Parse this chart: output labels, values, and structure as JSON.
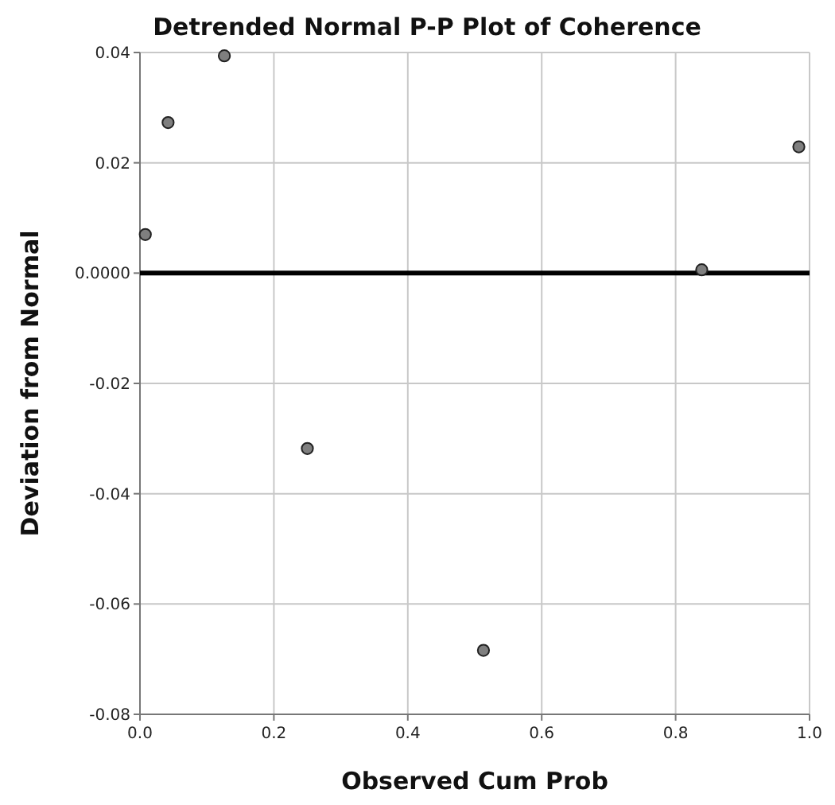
{
  "chart_data": {
    "type": "scatter",
    "title": "Detrended Normal P-P Plot of Coherence",
    "xlabel": "Observed Cum Prob",
    "ylabel": "Deviation from Normal",
    "x": [
      0.008,
      0.042,
      0.126,
      0.25,
      0.513,
      0.839,
      0.984
    ],
    "series": [
      {
        "color": "#7f7f7f",
        "values": [
          0.007,
          0.0273,
          0.0394,
          -0.0318,
          -0.0684,
          0.0006,
          0.0229
        ]
      }
    ],
    "xlim": [
      0,
      1
    ],
    "xticks": [
      {
        "value": 0,
        "label": "0.0"
      },
      {
        "value": 0.2,
        "label": "0.2"
      },
      {
        "value": 0.4,
        "label": "0.4"
      },
      {
        "value": 0.6,
        "label": "0.6"
      },
      {
        "value": 0.8,
        "label": "0.8"
      },
      {
        "value": 1,
        "label": "1.0"
      }
    ],
    "ylim": [
      -0.08,
      0.04
    ],
    "yticks": [
      -0.08,
      -0.06,
      -0.04,
      -0.02,
      {
        "value": 0,
        "label": "0.0000"
      },
      0.02,
      0.04
    ],
    "ref_lines": [
      {
        "axis": "y",
        "value": 0,
        "color": "#000000"
      }
    ],
    "grid": true,
    "marker": "circle"
  }
}
